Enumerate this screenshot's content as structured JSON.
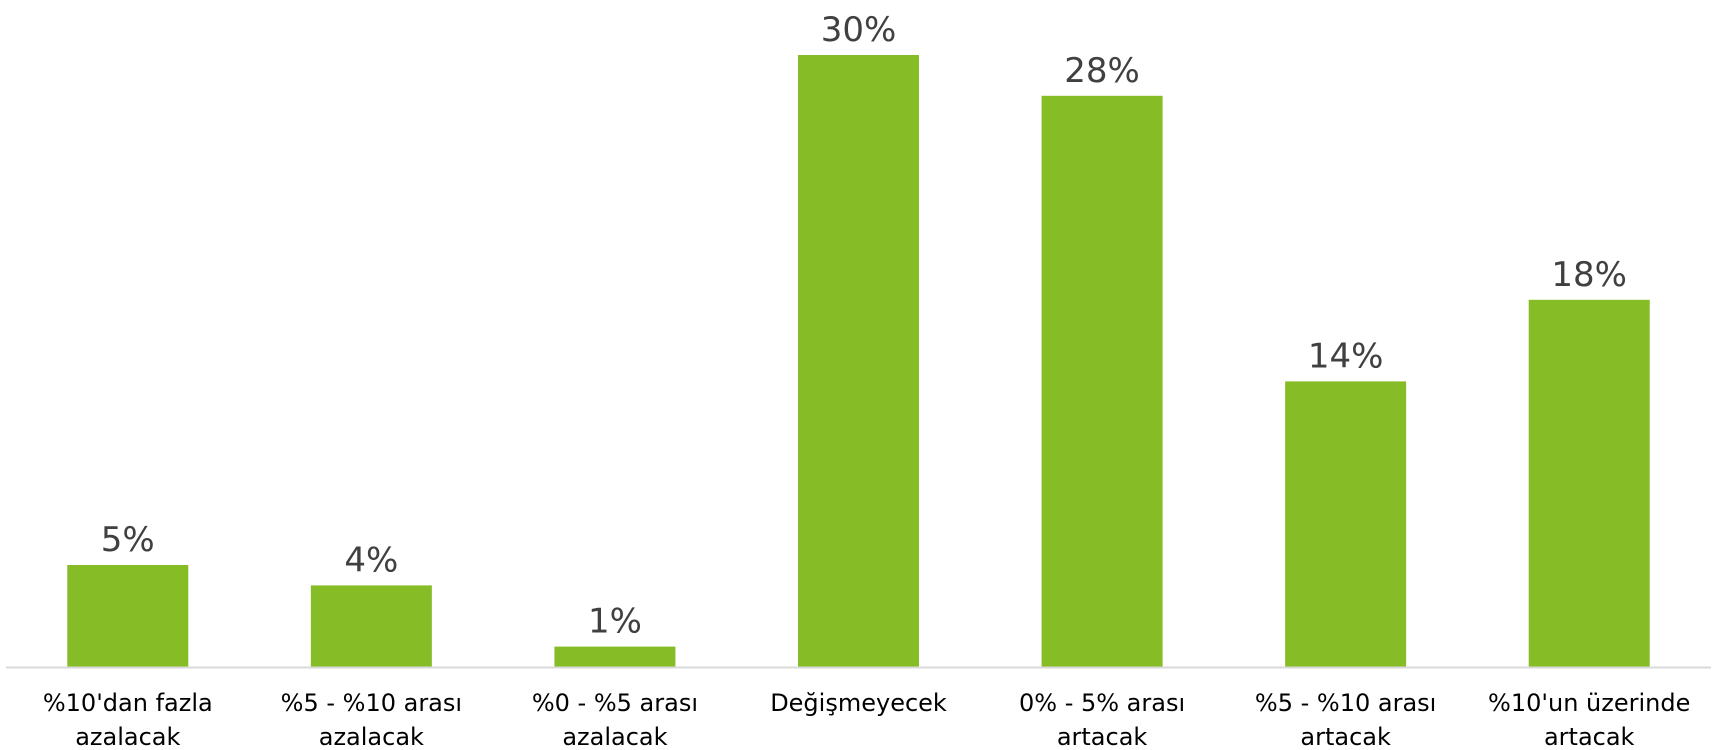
{
  "chart_data": {
    "type": "bar",
    "categories": [
      [
        "%10'dan fazla",
        "azalacak"
      ],
      [
        "%5 - %10 arası",
        "azalacak"
      ],
      [
        "%0 - %5 arası",
        "azalacak"
      ],
      [
        "Değişmeyecek"
      ],
      [
        "0% - 5% arası",
        "artacak"
      ],
      [
        "%5 - %10 arası",
        "artacak"
      ],
      [
        "%10'un üzerinde",
        "artacak"
      ]
    ],
    "values": [
      5,
      4,
      1,
      30,
      28,
      14,
      18
    ],
    "data_labels": [
      "5%",
      "4%",
      "1%",
      "30%",
      "28%",
      "14%",
      "18%"
    ],
    "ylim": [
      0,
      30
    ],
    "grid": false,
    "legend": "none",
    "colors": {
      "bar": "#86BC25",
      "axis": "#D9D9D9",
      "value_text": "#404040",
      "category_text": "#000000"
    }
  }
}
